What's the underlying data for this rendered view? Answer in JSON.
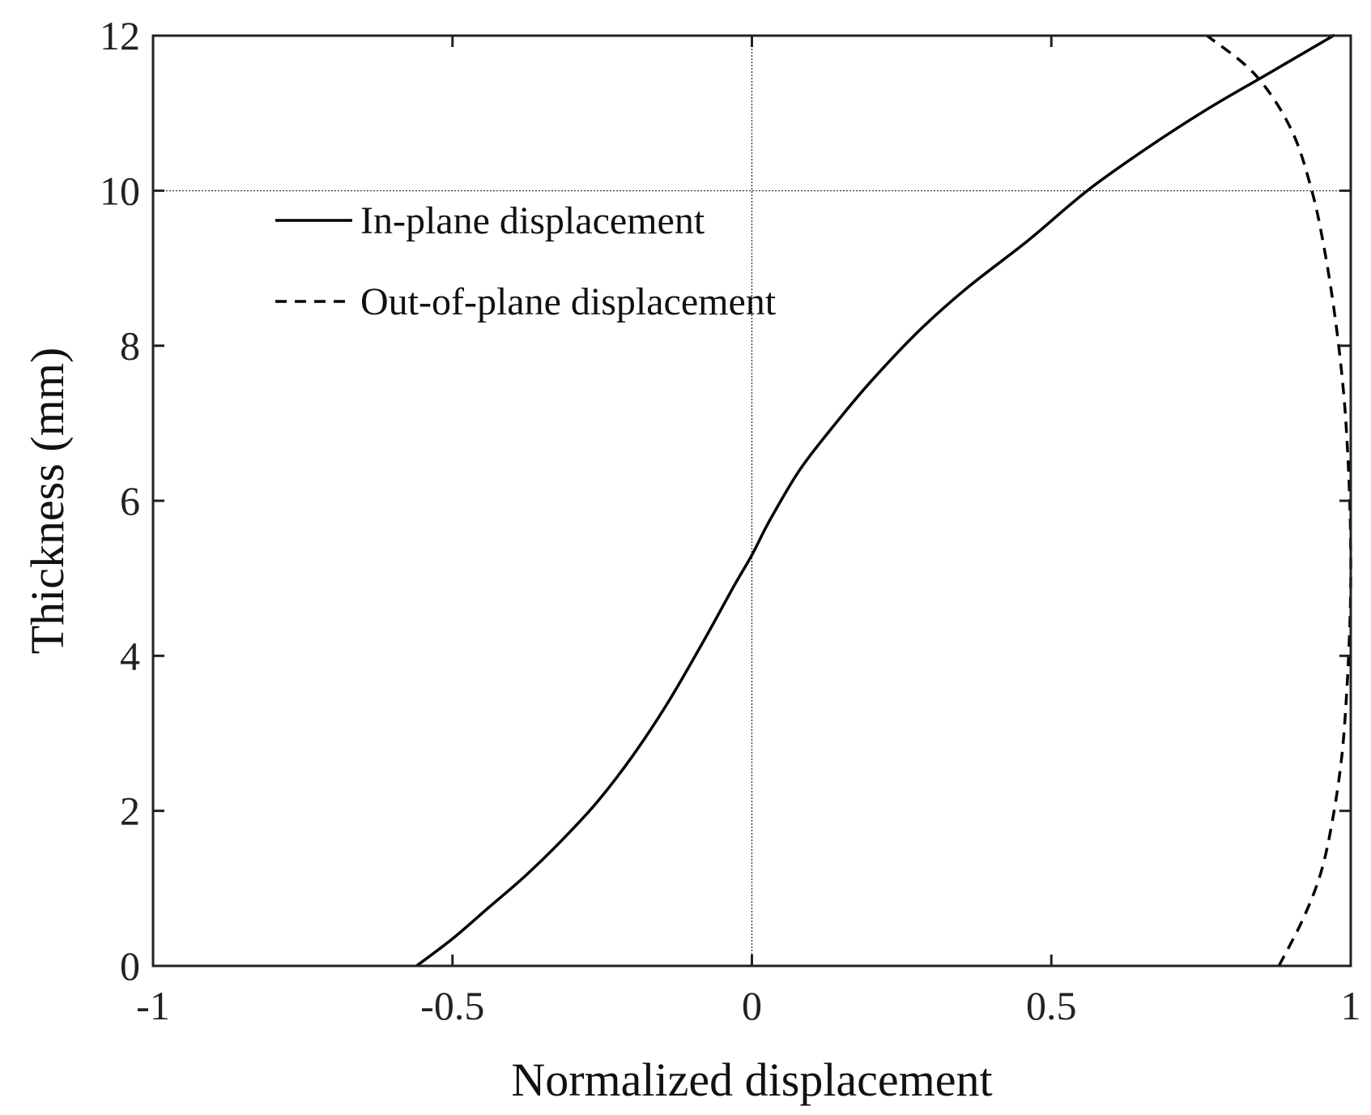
{
  "chart_data": {
    "type": "line",
    "xlabel": "Normalized displacement",
    "ylabel": "Thickness (mm)",
    "xlim": [
      -1,
      1
    ],
    "ylim": [
      0,
      12
    ],
    "xticks": [
      -1,
      -0.5,
      0,
      0.5,
      1
    ],
    "xtick_labels": [
      "-1",
      "-0.5",
      "0",
      "0.5",
      "1"
    ],
    "yticks": [
      0,
      2,
      4,
      6,
      8,
      10,
      12
    ],
    "ytick_labels": [
      "0",
      "2",
      "4",
      "6",
      "8",
      "10",
      "12"
    ],
    "reference_lines": {
      "x": 0,
      "y": 10
    },
    "legend_position": "upper-left",
    "grid": false,
    "series": [
      {
        "name": "In-plane displacement",
        "style": "solid",
        "color": "#000000",
        "points": [
          [
            -0.56,
            0
          ],
          [
            -0.5,
            0.35
          ],
          [
            -0.44,
            0.75
          ],
          [
            -0.38,
            1.15
          ],
          [
            -0.32,
            1.6
          ],
          [
            -0.26,
            2.1
          ],
          [
            -0.2,
            2.7
          ],
          [
            -0.14,
            3.4
          ],
          [
            -0.08,
            4.2
          ],
          [
            -0.03,
            4.9
          ],
          [
            0.0,
            5.3
          ],
          [
            0.03,
            5.75
          ],
          [
            0.08,
            6.4
          ],
          [
            0.14,
            7.0
          ],
          [
            0.2,
            7.55
          ],
          [
            0.28,
            8.2
          ],
          [
            0.36,
            8.75
          ],
          [
            0.46,
            9.35
          ],
          [
            0.56,
            10.0
          ],
          [
            0.66,
            10.55
          ],
          [
            0.76,
            11.05
          ],
          [
            0.86,
            11.5
          ],
          [
            0.96,
            11.95
          ],
          [
            0.97,
            12.0
          ]
        ]
      },
      {
        "name": "Out-of-plane displacement",
        "style": "dashed",
        "color": "#000000",
        "points": [
          [
            0.88,
            0
          ],
          [
            0.92,
            0.6
          ],
          [
            0.95,
            1.2
          ],
          [
            0.97,
            1.9
          ],
          [
            0.985,
            2.7
          ],
          [
            0.993,
            3.5
          ],
          [
            0.998,
            4.3
          ],
          [
            1.0,
            5.0
          ],
          [
            0.999,
            5.8
          ],
          [
            0.995,
            6.6
          ],
          [
            0.988,
            7.4
          ],
          [
            0.975,
            8.3
          ],
          [
            0.957,
            9.2
          ],
          [
            0.935,
            10.0
          ],
          [
            0.9,
            10.8
          ],
          [
            0.84,
            11.5
          ],
          [
            0.76,
            12.0
          ]
        ]
      }
    ]
  }
}
